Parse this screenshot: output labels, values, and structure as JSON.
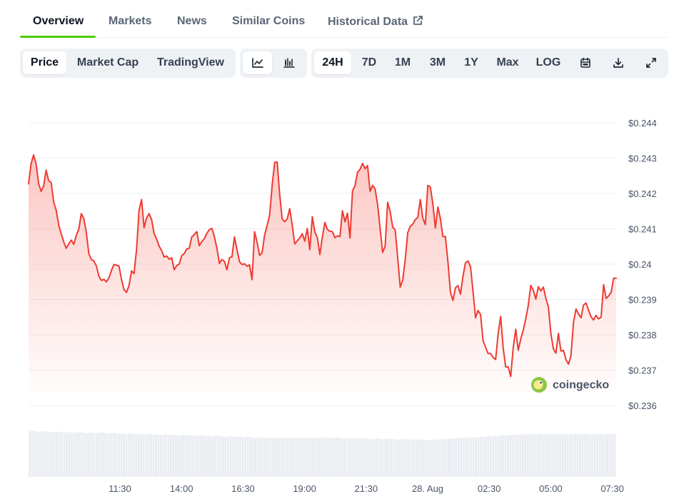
{
  "tabs": [
    {
      "label": "Overview"
    },
    {
      "label": "Markets"
    },
    {
      "label": "News"
    },
    {
      "label": "Similar Coins"
    },
    {
      "label": "Historical Data"
    }
  ],
  "toolbar": {
    "metrics": [
      "Price",
      "Market Cap",
      "TradingView"
    ],
    "chart_types": [
      "line-chart-icon",
      "candlestick-icon"
    ],
    "ranges": [
      "24H",
      "7D",
      "1M",
      "3M",
      "1Y",
      "Max",
      "LOG"
    ],
    "tools": [
      "calendar-icon",
      "download-icon",
      "expand-icon"
    ]
  },
  "watermark": "coingecko",
  "colors": {
    "line": "#ee3b32",
    "accent": "#4bcc00"
  },
  "chart_data": {
    "type": "area",
    "y_ticks": [
      "$0.244",
      "$0.243",
      "$0.242",
      "$0.241",
      "$0.24",
      "$0.239",
      "$0.238",
      "$0.237",
      "$0.236"
    ],
    "x_ticks": [
      "11:30",
      "14:00",
      "16:30",
      "19:00",
      "21:30",
      "28. Aug",
      "02:30",
      "05:00",
      "07:30"
    ],
    "ylim": [
      0.236,
      0.244
    ],
    "grid": true,
    "price_series": [
      0.24227,
      0.24284,
      0.24309,
      0.24284,
      0.24228,
      0.24206,
      0.24221,
      0.24266,
      0.24236,
      0.24231,
      0.24176,
      0.24153,
      0.24111,
      0.24086,
      0.24063,
      0.24045,
      0.24057,
      0.24068,
      0.24056,
      0.24081,
      0.24099,
      0.24143,
      0.24129,
      0.2409,
      0.2403,
      0.24013,
      0.24009,
      0.23995,
      0.23966,
      0.23954,
      0.23957,
      0.2395,
      0.23961,
      0.23982,
      0.23999,
      0.23997,
      0.23995,
      0.23957,
      0.23928,
      0.2392,
      0.23939,
      0.23981,
      0.23973,
      0.24041,
      0.24152,
      0.24183,
      0.24103,
      0.24131,
      0.24143,
      0.24126,
      0.24086,
      0.24071,
      0.24051,
      0.24038,
      0.2402,
      0.24023,
      0.24014,
      0.24018,
      0.23984,
      0.23996,
      0.24,
      0.24024,
      0.2403,
      0.24043,
      0.24045,
      0.24077,
      0.24084,
      0.24092,
      0.24052,
      0.24064,
      0.24072,
      0.24087,
      0.24098,
      0.24101,
      0.24078,
      0.24045,
      0.24002,
      0.24013,
      0.24008,
      0.23984,
      0.24018,
      0.24021,
      0.24077,
      0.24041,
      0.24007,
      0.23999,
      0.24001,
      0.23994,
      0.23998,
      0.23956,
      0.24092,
      0.24062,
      0.24025,
      0.24032,
      0.24082,
      0.24109,
      0.24139,
      0.24223,
      0.24288,
      0.24289,
      0.24198,
      0.24128,
      0.2412,
      0.24128,
      0.24157,
      0.24111,
      0.24057,
      0.24066,
      0.24074,
      0.24086,
      0.24065,
      0.24101,
      0.24041,
      0.24134,
      0.24091,
      0.24075,
      0.24027,
      0.24077,
      0.24118,
      0.24098,
      0.24093,
      0.24092,
      0.24075,
      0.2408,
      0.24078,
      0.24151,
      0.2412,
      0.24144,
      0.24074,
      0.24207,
      0.24222,
      0.2426,
      0.24268,
      0.24285,
      0.2427,
      0.24279,
      0.24206,
      0.24223,
      0.24213,
      0.24169,
      0.24101,
      0.24033,
      0.24051,
      0.24175,
      0.24149,
      0.24105,
      0.24097,
      0.24018,
      0.23935,
      0.23955,
      0.24013,
      0.24089,
      0.24107,
      0.24113,
      0.24126,
      0.24132,
      0.24183,
      0.2413,
      0.24112,
      0.24223,
      0.24218,
      0.24171,
      0.24102,
      0.24162,
      0.24129,
      0.24078,
      0.24078,
      0.24007,
      0.23921,
      0.23897,
      0.23933,
      0.23939,
      0.23915,
      0.23966,
      0.24004,
      0.24009,
      0.23993,
      0.23922,
      0.23848,
      0.23869,
      0.23857,
      0.23783,
      0.23765,
      0.23747,
      0.23747,
      0.23736,
      0.2373,
      0.23803,
      0.23852,
      0.23763,
      0.23709,
      0.23709,
      0.23682,
      0.23763,
      0.23816,
      0.23756,
      0.23788,
      0.23813,
      0.23845,
      0.23883,
      0.2394,
      0.23926,
      0.23901,
      0.23936,
      0.23924,
      0.23935,
      0.23903,
      0.23879,
      0.23804,
      0.2376,
      0.23748,
      0.23804,
      0.23754,
      0.23756,
      0.2373,
      0.23717,
      0.2374,
      0.23835,
      0.23873,
      0.23859,
      0.23848,
      0.23884,
      0.2389,
      0.2387,
      0.23851,
      0.23842,
      0.23855,
      0.23845,
      0.2385,
      0.23942,
      0.23903,
      0.2391,
      0.2392,
      0.2396,
      0.2396
    ],
    "volume_series": [
      0.98,
      0.99,
      0.99,
      0.98,
      0.97,
      0.98,
      0.99,
      0.98,
      0.97,
      0.96,
      0.97,
      0.98,
      0.97,
      0.96,
      0.95,
      0.96,
      0.97,
      0.96,
      0.95,
      0.96,
      0.97,
      0.96,
      0.95,
      0.94,
      0.95,
      0.96,
      0.95,
      0.94,
      0.95,
      0.96,
      0.95,
      0.94,
      0.93,
      0.94,
      0.95,
      0.94,
      0.93,
      0.94,
      0.93,
      0.92,
      0.93,
      0.94,
      0.93,
      0.92,
      0.93,
      0.92,
      0.91,
      0.92,
      0.93,
      0.92,
      0.91,
      0.92,
      0.91,
      0.9,
      0.91,
      0.92,
      0.91,
      0.9,
      0.91,
      0.9,
      0.89,
      0.9,
      0.91,
      0.9,
      0.89,
      0.9,
      0.89,
      0.88,
      0.89,
      0.9,
      0.89,
      0.88,
      0.89,
      0.88,
      0.87,
      0.88,
      0.89,
      0.88,
      0.87,
      0.86,
      0.87,
      0.88,
      0.87,
      0.86,
      0.87,
      0.86,
      0.85,
      0.86,
      0.87,
      0.86,
      0.85,
      0.84,
      0.85,
      0.84,
      0.85,
      0.84,
      0.83,
      0.84,
      0.85,
      0.84,
      0.83,
      0.84,
      0.83,
      0.84,
      0.85,
      0.84,
      0.83,
      0.84,
      0.83,
      0.84,
      0.85,
      0.84,
      0.83,
      0.84,
      0.85,
      0.84,
      0.83,
      0.84,
      0.85,
      0.84,
      0.85,
      0.84,
      0.83,
      0.84,
      0.85,
      0.84,
      0.83,
      0.82,
      0.83,
      0.84,
      0.83,
      0.82,
      0.83,
      0.84,
      0.83,
      0.82,
      0.83,
      0.82,
      0.81,
      0.82,
      0.83,
      0.82,
      0.81,
      0.82,
      0.83,
      0.82,
      0.81,
      0.82,
      0.81,
      0.8,
      0.81,
      0.82,
      0.81,
      0.8,
      0.81,
      0.8,
      0.79,
      0.8,
      0.81,
      0.8,
      0.79,
      0.8,
      0.79,
      0.8,
      0.81,
      0.8,
      0.81,
      0.82,
      0.81,
      0.82,
      0.83,
      0.82,
      0.83,
      0.84,
      0.83,
      0.84,
      0.85,
      0.84,
      0.85,
      0.86,
      0.85,
      0.86,
      0.87,
      0.86,
      0.87,
      0.88,
      0.87,
      0.88,
      0.89,
      0.88,
      0.89,
      0.9,
      0.89,
      0.9,
      0.91,
      0.9,
      0.91,
      0.92,
      0.91,
      0.92,
      0.91,
      0.92,
      0.93,
      0.92,
      0.91,
      0.92,
      0.93,
      0.92,
      0.91,
      0.92,
      0.93,
      0.92,
      0.93,
      0.92,
      0.91,
      0.92,
      0.93,
      0.92,
      0.91,
      0.92,
      0.93,
      0.92,
      0.91,
      0.92,
      0.93,
      0.92,
      0.91,
      0.92,
      0.93,
      0.92,
      0.93,
      0.92,
      0.91,
      0.92,
      0.93,
      0.92,
      0.93
    ]
  }
}
